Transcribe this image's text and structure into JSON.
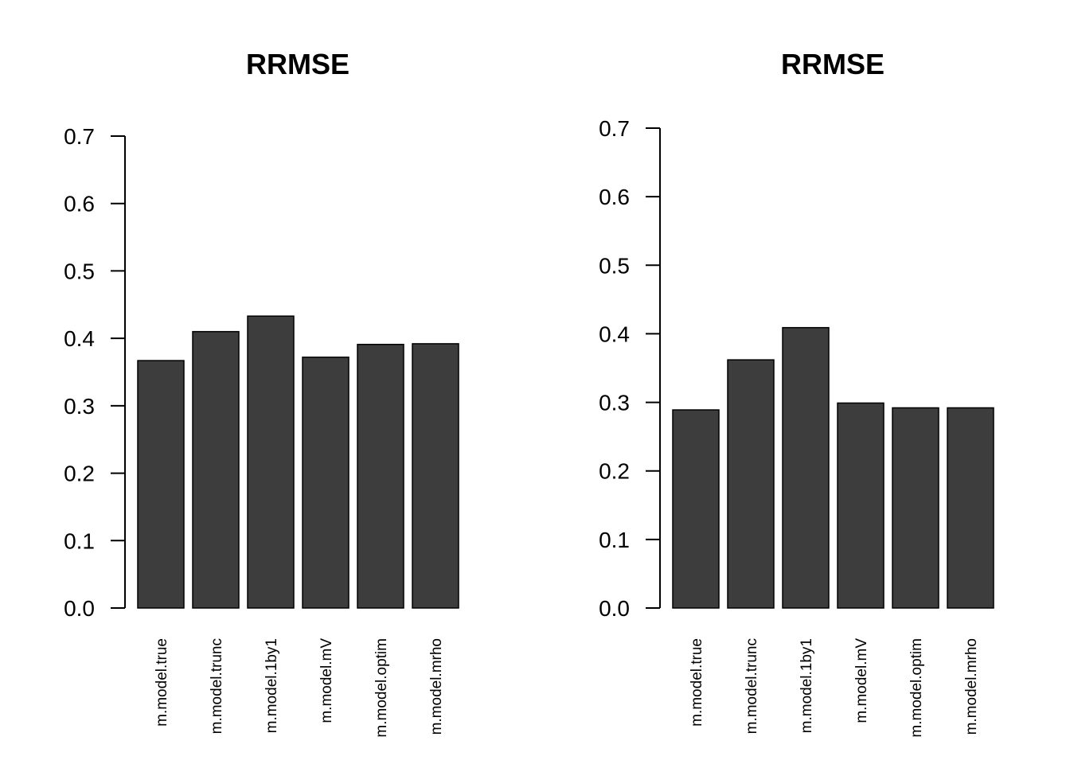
{
  "chart_data": [
    {
      "type": "bar",
      "title": "RRMSE",
      "xlabel": "",
      "ylabel": "",
      "ylim": [
        0,
        0.7
      ],
      "yticks": [
        0.0,
        0.1,
        0.2,
        0.3,
        0.4,
        0.5,
        0.6,
        0.7
      ],
      "ytick_labels": [
        "0.0",
        "0.1",
        "0.2",
        "0.3",
        "0.4",
        "0.5",
        "0.6",
        "0.7"
      ],
      "categories": [
        "m.model.true",
        "m.model.trunc",
        "m.model.1by1",
        "m.model.mV",
        "m.model.optim",
        "m.model.mrho"
      ],
      "values": [
        0.367,
        0.41,
        0.433,
        0.372,
        0.391,
        0.392
      ],
      "bar_color": "#3d3d3d",
      "grid": false
    },
    {
      "type": "bar",
      "title": "RRMSE",
      "xlabel": "",
      "ylabel": "",
      "ylim": [
        0,
        0.7
      ],
      "yticks": [
        0.0,
        0.1,
        0.2,
        0.3,
        0.4,
        0.5,
        0.6,
        0.7
      ],
      "ytick_labels": [
        "0.0",
        "0.1",
        "0.2",
        "0.3",
        "0.4",
        "0.5",
        "0.6",
        "0.7"
      ],
      "categories": [
        "m.model.true",
        "m.model.trunc",
        "m.model.1by1",
        "m.model.mV",
        "m.model.optim",
        "m.model.mrho"
      ],
      "values": [
        0.289,
        0.362,
        0.409,
        0.299,
        0.292,
        0.292
      ],
      "bar_color": "#3d3d3d",
      "grid": false
    }
  ]
}
